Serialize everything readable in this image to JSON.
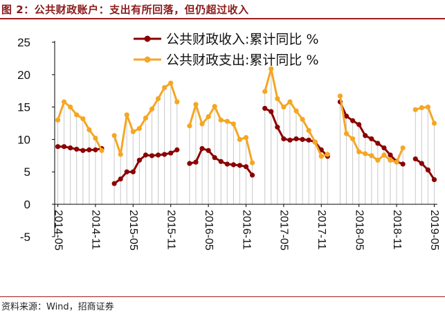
{
  "header": {
    "title": "图 2：公共财政账户：支出有所回落，但仍超过收入"
  },
  "footer": {
    "source": "资料来源：Wind，招商证券"
  },
  "colors": {
    "revenue": "#8b0000",
    "expenditure": "#f5a623",
    "title": "#8b1a1a",
    "rule": "#9b1c1c",
    "dropline": "#c8c8c8"
  },
  "chart_data": {
    "type": "line",
    "title": "",
    "xlabel": "",
    "ylabel": "",
    "ylim": [
      -5,
      25
    ],
    "yticks": [
      -5,
      0,
      5,
      10,
      15,
      20,
      25
    ],
    "grid": false,
    "drop_lines": true,
    "legend_position": "top-center",
    "x_tick_labels": [
      "2014-05",
      "2014-11",
      "2015-05",
      "2015-11",
      "2016-05",
      "2016-11",
      "2017-05",
      "2017-11",
      "2018-05",
      "2018-11",
      "2019-05"
    ],
    "x": [
      "2014-05",
      "2014-06",
      "2014-07",
      "2014-08",
      "2014-09",
      "2014-10",
      "2014-11",
      "2014-12",
      "2015-01",
      "2015-02",
      "2015-03",
      "2015-04",
      "2015-05",
      "2015-06",
      "2015-07",
      "2015-08",
      "2015-09",
      "2015-10",
      "2015-11",
      "2015-12",
      "2016-01",
      "2016-02",
      "2016-03",
      "2016-04",
      "2016-05",
      "2016-06",
      "2016-07",
      "2016-08",
      "2016-09",
      "2016-10",
      "2016-11",
      "2016-12",
      "2017-01",
      "2017-02",
      "2017-03",
      "2017-04",
      "2017-05",
      "2017-06",
      "2017-07",
      "2017-08",
      "2017-09",
      "2017-10",
      "2017-11",
      "2017-12",
      "2018-01",
      "2018-02",
      "2018-03",
      "2018-04",
      "2018-05",
      "2018-06",
      "2018-07",
      "2018-08",
      "2018-09",
      "2018-10",
      "2018-11",
      "2018-12",
      "2019-01",
      "2019-02",
      "2019-03",
      "2019-04",
      "2019-05"
    ],
    "series": [
      {
        "name": "公共财政收入:累计同比 %",
        "values": [
          8.9,
          8.9,
          8.7,
          8.5,
          8.3,
          8.4,
          8.4,
          8.6,
          null,
          3.2,
          3.9,
          5.0,
          5.0,
          6.8,
          7.6,
          7.5,
          7.6,
          7.7,
          7.9,
          8.4,
          null,
          6.3,
          6.5,
          8.6,
          8.3,
          7.2,
          6.6,
          6.2,
          6.1,
          6.0,
          5.8,
          4.5,
          null,
          14.8,
          14.3,
          11.9,
          10.1,
          9.9,
          10.1,
          10.0,
          9.9,
          9.6,
          8.4,
          7.4,
          null,
          15.8,
          13.6,
          12.9,
          12.3,
          10.6,
          10.1,
          9.4,
          8.7,
          7.6,
          6.6,
          6.2,
          null,
          7.0,
          6.3,
          5.3,
          3.8
        ]
      },
      {
        "name": "公共财政支出:累计同比 %",
        "values": [
          13.0,
          15.8,
          15.0,
          13.8,
          13.2,
          11.5,
          10.2,
          8.3,
          null,
          10.6,
          7.7,
          13.8,
          11.2,
          11.7,
          13.3,
          14.7,
          16.3,
          18.0,
          18.7,
          15.8,
          null,
          12.1,
          15.4,
          12.4,
          13.5,
          15.1,
          13.0,
          12.8,
          12.4,
          10.0,
          10.3,
          6.4,
          null,
          17.4,
          20.9,
          16.3,
          15.0,
          15.8,
          14.4,
          13.1,
          11.4,
          9.6,
          7.4,
          7.7,
          null,
          16.7,
          10.9,
          10.1,
          8.1,
          7.8,
          7.5,
          6.8,
          7.6,
          6.8,
          6.5,
          8.7,
          null,
          14.6,
          14.9,
          15.0,
          12.5
        ]
      }
    ]
  }
}
